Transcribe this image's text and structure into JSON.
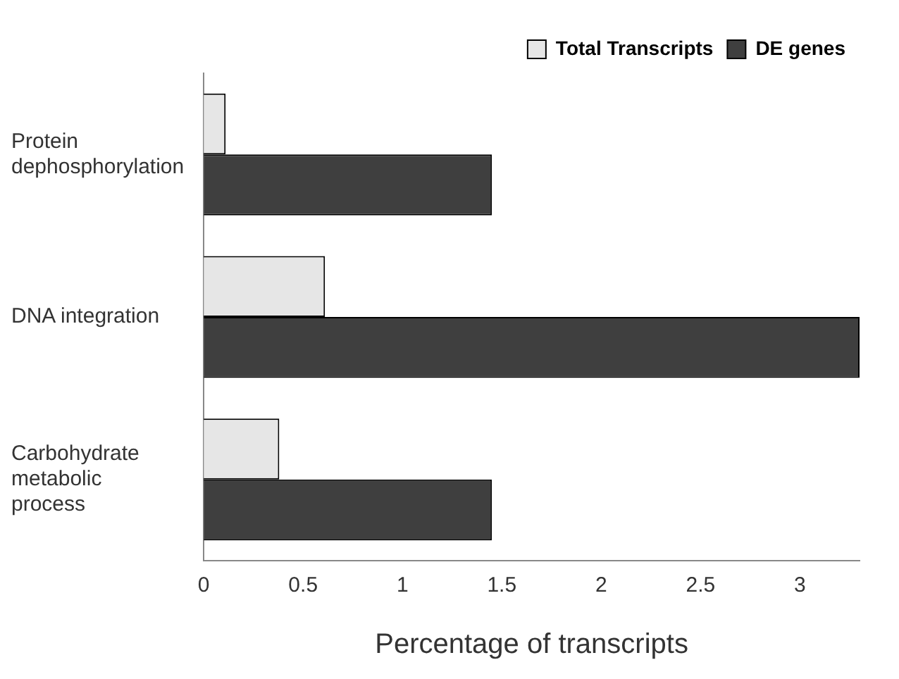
{
  "chart_data": {
    "type": "bar",
    "orientation": "horizontal",
    "xlabel": "Percentage of transcripts",
    "categories": [
      "Protein dephosphorylation",
      "DNA integration",
      "Carbohydrate metabolic process"
    ],
    "series": [
      {
        "name": "Total Transcripts",
        "color": "#e6e6e6",
        "values": [
          0.11,
          0.61,
          0.38
        ]
      },
      {
        "name": "DE genes",
        "color": "#3f3f3f",
        "values": [
          1.45,
          3.3,
          1.45
        ]
      }
    ],
    "xlim": [
      0,
      3.3
    ],
    "xticks": [
      0,
      0.5,
      1,
      1.5,
      2,
      2.5,
      3
    ],
    "grid": false,
    "legend": "top right"
  }
}
